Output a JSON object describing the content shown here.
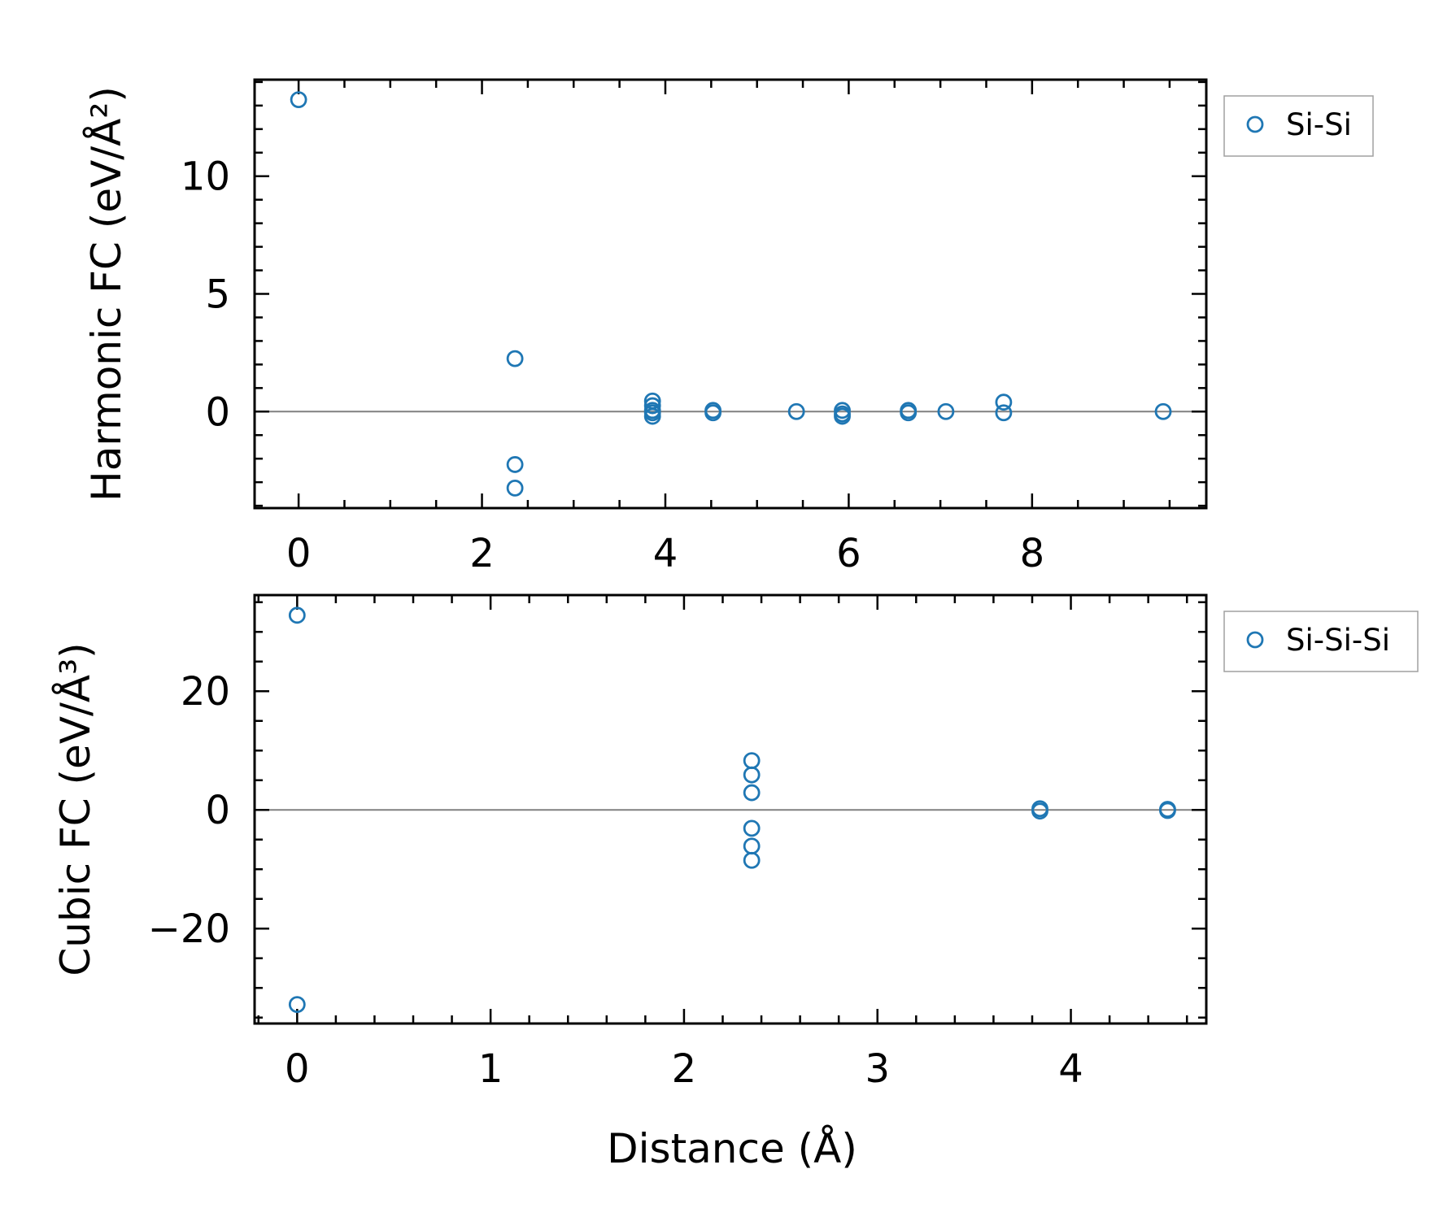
{
  "colors": {
    "series": "#1f77b4",
    "zero_line": "#808080"
  },
  "chart_data": [
    {
      "type": "scatter",
      "ylabel": "Harmonic FC (eV/Å²)",
      "xlabel": "",
      "xlim": [
        -0.48,
        9.9
      ],
      "ylim": [
        -4.1,
        14.1
      ],
      "xticks": [
        0,
        2,
        4,
        6,
        8
      ],
      "xtick_labels": [
        "0",
        "2",
        "4",
        "6",
        "8"
      ],
      "yticks": [
        0,
        5,
        10
      ],
      "ytick_labels": [
        "0",
        "5",
        "10"
      ],
      "x_minor_step": 0.5,
      "y_minor_step": 1,
      "zero_line": true,
      "grid": false,
      "legend_position": "outside-right-top",
      "series": [
        {
          "name": "Si-Si",
          "marker": "open-circle",
          "points": [
            [
              0.0,
              13.25
            ],
            [
              2.36,
              2.25
            ],
            [
              2.36,
              -2.25
            ],
            [
              2.36,
              -3.25
            ],
            [
              3.86,
              0.45
            ],
            [
              3.86,
              0.25
            ],
            [
              3.86,
              0.05
            ],
            [
              3.86,
              -0.05
            ],
            [
              3.86,
              -0.2
            ],
            [
              4.52,
              0.05
            ],
            [
              4.52,
              -0.05
            ],
            [
              5.43,
              0.0
            ],
            [
              5.93,
              0.05
            ],
            [
              5.93,
              -0.1
            ],
            [
              5.93,
              -0.2
            ],
            [
              6.65,
              0.05
            ],
            [
              6.65,
              -0.05
            ],
            [
              7.06,
              0.0
            ],
            [
              7.69,
              0.4
            ],
            [
              7.69,
              -0.05
            ],
            [
              9.43,
              0.0
            ]
          ]
        }
      ]
    },
    {
      "type": "scatter",
      "ylabel": "Cubic FC (eV/Å³)",
      "xlabel": "Distance (Å)",
      "xlim": [
        -0.22,
        4.7
      ],
      "ylim": [
        -36.0,
        36.2
      ],
      "xticks": [
        0,
        1,
        2,
        3,
        4
      ],
      "xtick_labels": [
        "0",
        "1",
        "2",
        "3",
        "4"
      ],
      "yticks": [
        -20,
        0,
        20
      ],
      "ytick_labels": [
        "−20",
        "0",
        "20"
      ],
      "x_minor_step": 0.2,
      "y_minor_step": 5,
      "zero_line": true,
      "grid": false,
      "legend_position": "outside-right-top",
      "series": [
        {
          "name": "Si-Si-Si",
          "marker": "open-circle",
          "points": [
            [
              0.0,
              32.8
            ],
            [
              0.0,
              -32.8
            ],
            [
              2.35,
              8.3
            ],
            [
              2.35,
              5.9
            ],
            [
              2.35,
              2.9
            ],
            [
              2.35,
              -3.1
            ],
            [
              2.35,
              -6.1
            ],
            [
              2.35,
              -8.5
            ],
            [
              3.84,
              0.2
            ],
            [
              3.84,
              -0.2
            ],
            [
              4.5,
              0.1
            ],
            [
              4.5,
              -0.1
            ]
          ]
        }
      ]
    }
  ]
}
